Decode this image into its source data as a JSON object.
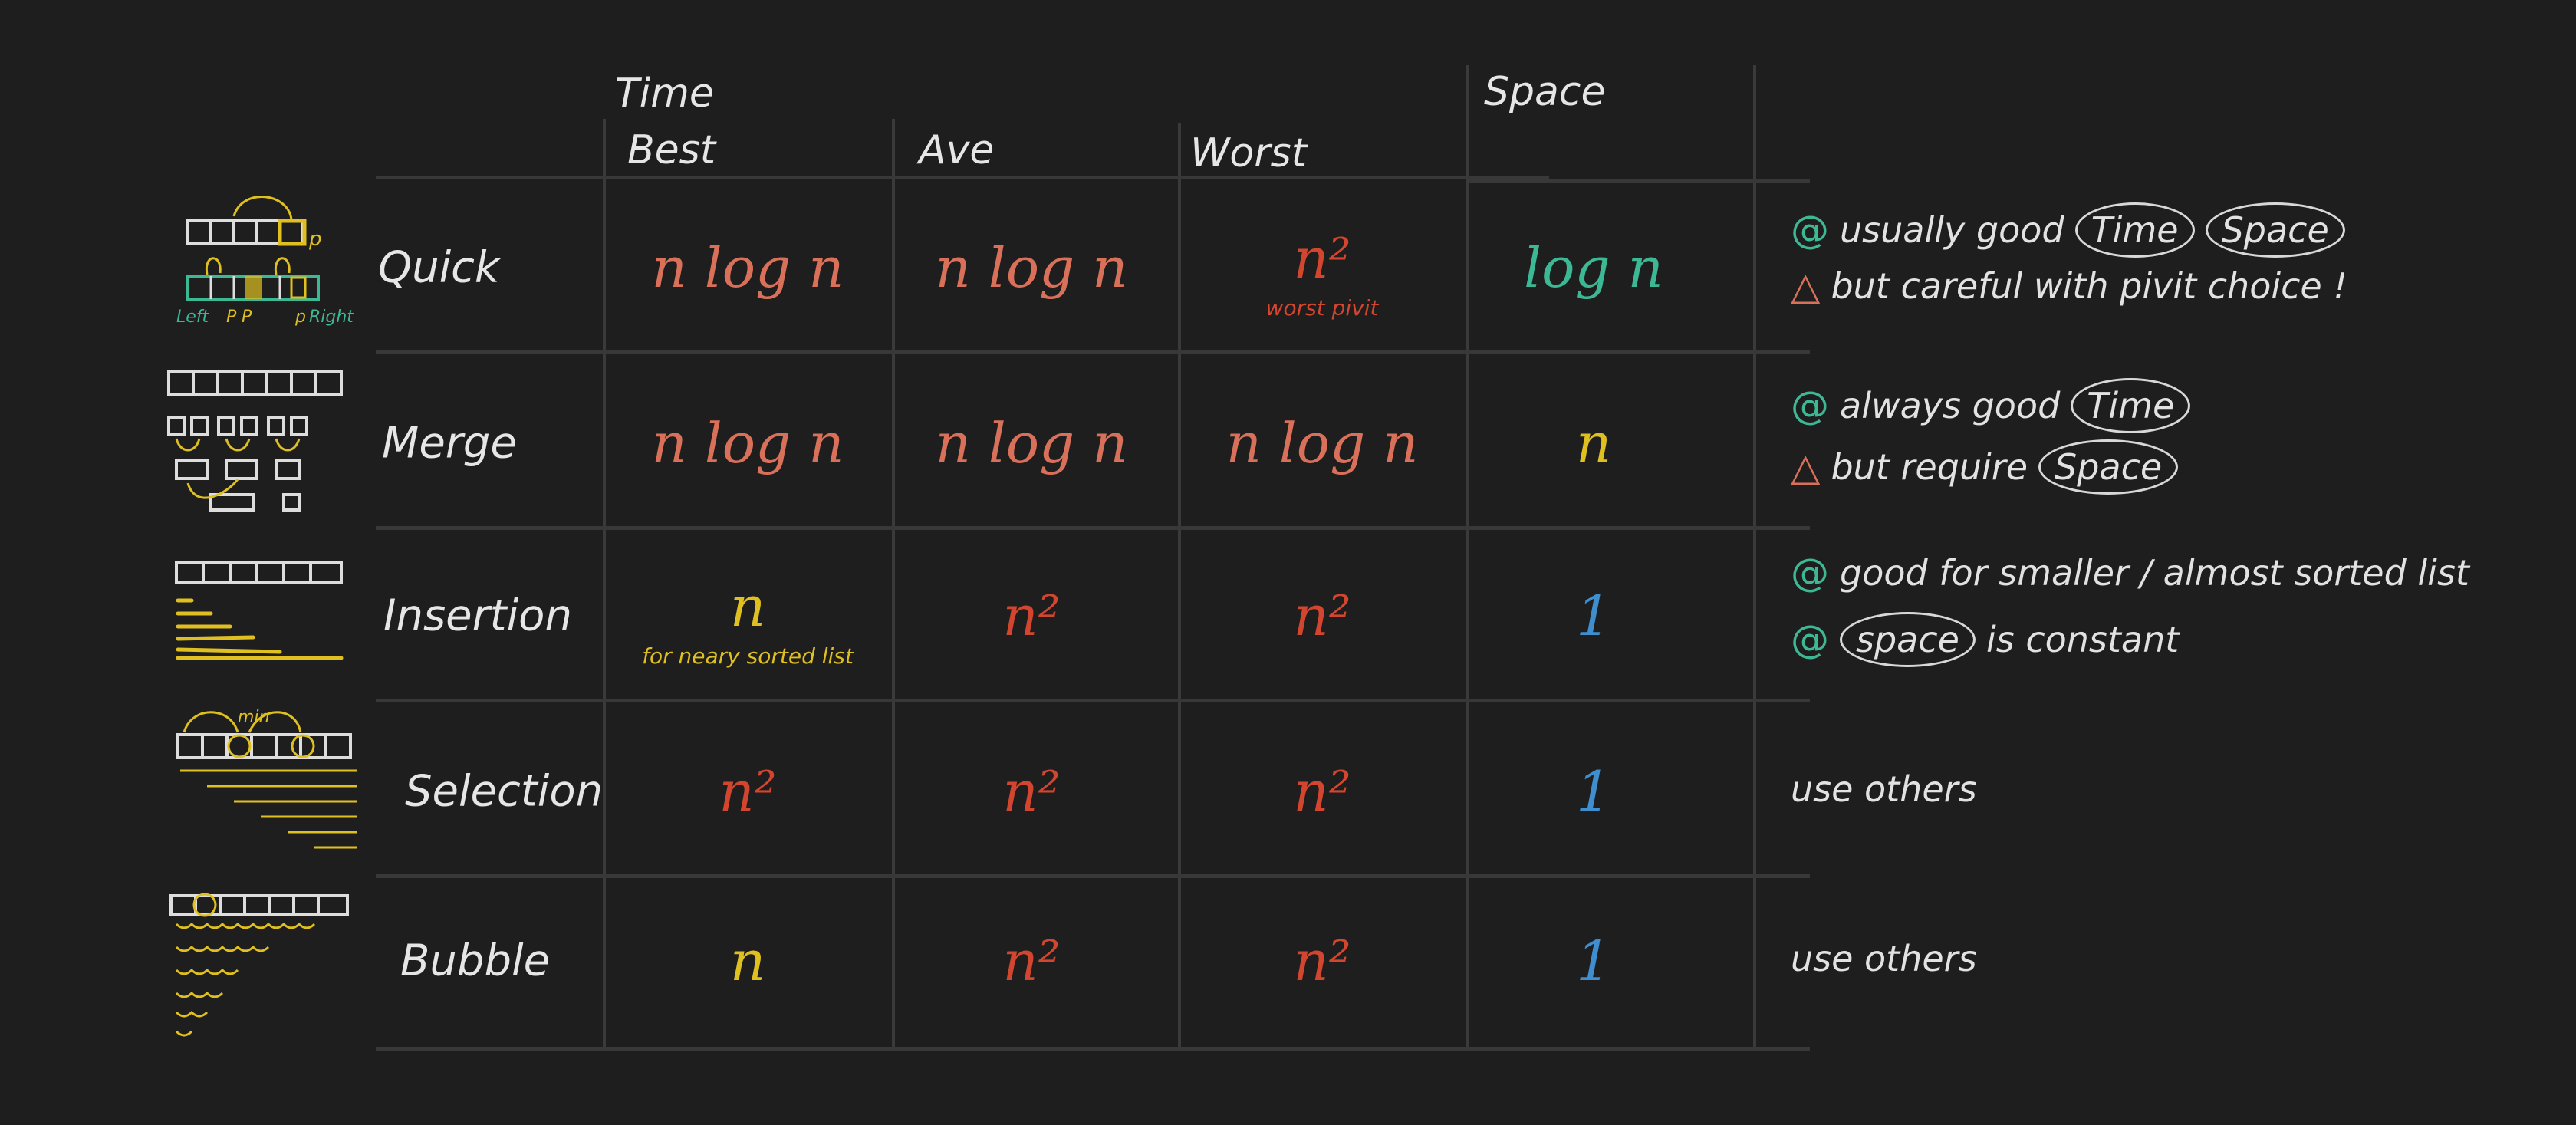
{
  "colors": {
    "background": "#1e1e1e",
    "grid": "#3a3a3a",
    "text": "#e2e2e2",
    "salmon": "#d9705a",
    "red": "#d2452e",
    "yellow": "#e0c020",
    "teal": "#3db894",
    "blue": "#3f8fd0"
  },
  "headers": {
    "time": "Time",
    "space": "Space",
    "best": "Best",
    "ave": "Ave",
    "worst": "Worst"
  },
  "thumbnails": {
    "quick": {
      "labels": [
        "Left",
        "P",
        "P",
        "p",
        "Right"
      ],
      "pivot": "p"
    },
    "selection": {
      "label": "min"
    }
  },
  "rows": [
    {
      "name": "Quick",
      "best": {
        "text": "n log n",
        "color": "#d9705a"
      },
      "ave": {
        "text": "n log n",
        "color": "#d9705a"
      },
      "worst": {
        "text": "n²",
        "color": "#d2452e",
        "note": "worst pivit"
      },
      "space": {
        "text": "log n",
        "color": "#3db894"
      },
      "notes": [
        {
          "marker": "@",
          "marker_color": "#3db894",
          "segments": [
            {
              "text": "usually good"
            },
            {
              "text": "Time",
              "circled": true
            },
            {
              "text": "Space",
              "circled": true
            }
          ]
        },
        {
          "marker": "△",
          "marker_color": "#d9705a",
          "segments": [
            {
              "text": "but careful with pivit choice !"
            }
          ]
        }
      ]
    },
    {
      "name": "Merge",
      "best": {
        "text": "n log n",
        "color": "#d9705a"
      },
      "ave": {
        "text": "n log n",
        "color": "#d9705a"
      },
      "worst": {
        "text": "n log n",
        "color": "#d9705a"
      },
      "space": {
        "text": "n",
        "color": "#e0c020"
      },
      "notes": [
        {
          "marker": "@",
          "marker_color": "#3db894",
          "segments": [
            {
              "text": "always good"
            },
            {
              "text": "Time",
              "circled": true
            }
          ]
        },
        {
          "marker": "△",
          "marker_color": "#d9705a",
          "segments": [
            {
              "text": "but require"
            },
            {
              "text": "Space",
              "circled": true
            }
          ]
        }
      ]
    },
    {
      "name": "Insertion",
      "best": {
        "text": "n",
        "color": "#e0c020",
        "note": "for neary sorted list"
      },
      "ave": {
        "text": "n²",
        "color": "#d2452e"
      },
      "worst": {
        "text": "n²",
        "color": "#d2452e"
      },
      "space": {
        "text": "1",
        "color": "#3f8fd0"
      },
      "notes": [
        {
          "marker": "@",
          "marker_color": "#3db894",
          "segments": [
            {
              "text": "good for smaller / almost sorted list"
            }
          ]
        },
        {
          "marker": "@",
          "marker_color": "#3db894",
          "segments": [
            {
              "text": "space",
              "circled": true
            },
            {
              "text": "is constant"
            }
          ]
        }
      ]
    },
    {
      "name": "Selection",
      "best": {
        "text": "n²",
        "color": "#d2452e"
      },
      "ave": {
        "text": "n²",
        "color": "#d2452e"
      },
      "worst": {
        "text": "n²",
        "color": "#d2452e"
      },
      "space": {
        "text": "1",
        "color": "#3f8fd0"
      },
      "notes": [
        {
          "marker": "",
          "marker_color": "#e2e2e2",
          "segments": [
            {
              "text": "use others"
            }
          ]
        }
      ]
    },
    {
      "name": "Bubble",
      "best": {
        "text": "n",
        "color": "#e0c020"
      },
      "ave": {
        "text": "n²",
        "color": "#d2452e"
      },
      "worst": {
        "text": "n²",
        "color": "#d2452e"
      },
      "space": {
        "text": "1",
        "color": "#3f8fd0"
      },
      "notes": [
        {
          "marker": "",
          "marker_color": "#e2e2e2",
          "segments": [
            {
              "text": "use others"
            }
          ]
        }
      ]
    }
  ]
}
